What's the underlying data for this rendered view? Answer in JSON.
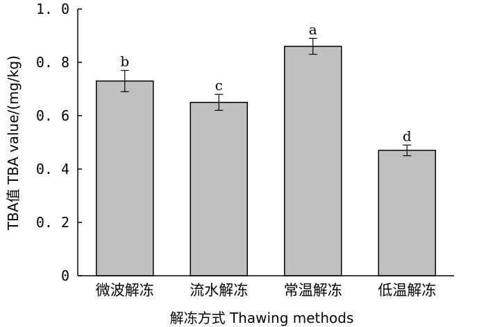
{
  "chart_data": {
    "type": "bar",
    "categories": [
      "微波解冻",
      "流水解冻",
      "常温解冻",
      "低温解冻"
    ],
    "values": [
      0.73,
      0.65,
      0.86,
      0.47
    ],
    "errors": [
      0.04,
      0.03,
      0.03,
      0.02
    ],
    "significance_letters": [
      "b",
      "c",
      "a",
      "d"
    ],
    "xlabel": "解冻方式 Thawing methods",
    "ylabel": "TBA值 TBA value/(mg/kg)",
    "ylim": [
      0,
      1.0
    ],
    "yticks": [
      0,
      0.2,
      0.4,
      0.6,
      0.8,
      1.0
    ],
    "ytick_labels": [
      "0",
      "0. 2",
      "0. 4",
      "0. 6",
      "0. 8",
      "1. 0"
    ],
    "grid": false,
    "bar_color": "#c0c0c0",
    "edge_color": "#000000"
  }
}
